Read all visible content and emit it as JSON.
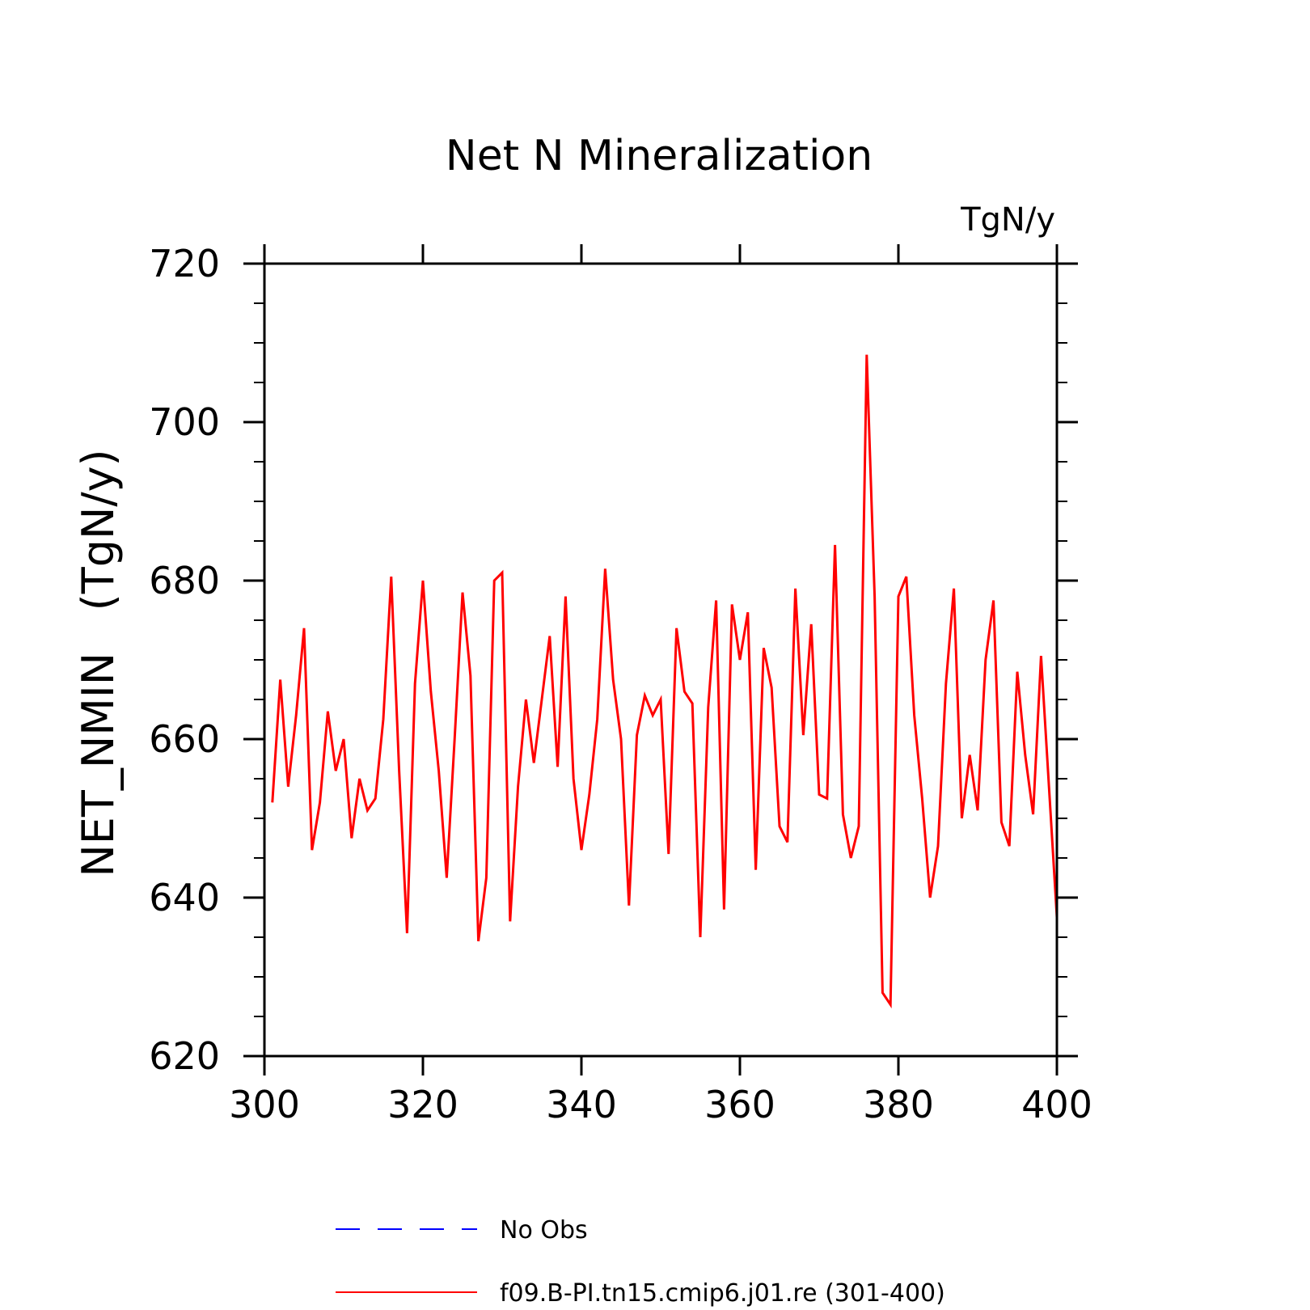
{
  "chart_data": {
    "type": "line",
    "title": "Net N Mineralization",
    "units_label": "TgN/y",
    "ylabel": "NET_NMIN   (TgN/y)",
    "xlabel": "",
    "xlim": [
      300,
      400
    ],
    "ylim": [
      620,
      720
    ],
    "x_ticks": [
      300,
      320,
      340,
      360,
      380,
      400
    ],
    "y_ticks": [
      620,
      640,
      660,
      680,
      700,
      720
    ],
    "x_minor_step": 5,
    "y_minor_step": 5,
    "grid": false,
    "legend_position": "bottom",
    "series": [
      {
        "name": "No Obs",
        "color": "#0000ff",
        "style": "dashed",
        "x": [],
        "y": []
      },
      {
        "name": "f09.B-PI.tn15.cmip6.j01.re (301-400)",
        "color": "#ff0000",
        "style": "solid",
        "x": [
          301,
          302,
          303,
          304,
          305,
          306,
          307,
          308,
          309,
          310,
          311,
          312,
          313,
          314,
          315,
          316,
          317,
          318,
          319,
          320,
          321,
          322,
          323,
          324,
          325,
          326,
          327,
          328,
          329,
          330,
          331,
          332,
          333,
          334,
          335,
          336,
          337,
          338,
          339,
          340,
          341,
          342,
          343,
          344,
          345,
          346,
          347,
          348,
          349,
          350,
          351,
          352,
          353,
          354,
          355,
          356,
          357,
          358,
          359,
          360,
          361,
          362,
          363,
          364,
          365,
          366,
          367,
          368,
          369,
          370,
          371,
          372,
          373,
          374,
          375,
          376,
          377,
          378,
          379,
          380,
          381,
          382,
          383,
          384,
          385,
          386,
          387,
          388,
          389,
          390,
          391,
          392,
          393,
          394,
          395,
          396,
          397,
          398,
          399,
          400
        ],
        "y": [
          652,
          667.5,
          654,
          663,
          674,
          646,
          652,
          663.5,
          656,
          660,
          647.5,
          655,
          651,
          652.5,
          662.5,
          680.5,
          656,
          635.5,
          667,
          680,
          666,
          656,
          642.5,
          660,
          678.5,
          668,
          634.5,
          642.5,
          680,
          681,
          637,
          654,
          665,
          657,
          665,
          673,
          656.5,
          678,
          655,
          646,
          653,
          662.5,
          681.5,
          667.5,
          660,
          639,
          660.5,
          665.5,
          663,
          665,
          645.5,
          674,
          666,
          664.5,
          635,
          664,
          677.5,
          638.5,
          677,
          670,
          676,
          643.5,
          671.5,
          666.5,
          649,
          647,
          679,
          660.5,
          674.5,
          653,
          652.5,
          684.5,
          650.5,
          645,
          649,
          708.5,
          678,
          628,
          626.5,
          678,
          680.5,
          663,
          652.5,
          640,
          646.5,
          667,
          679,
          650,
          658,
          651,
          670,
          677.5,
          649.5,
          646.5,
          668.5,
          658,
          650.5,
          670.5,
          654,
          637.5
        ]
      }
    ]
  }
}
